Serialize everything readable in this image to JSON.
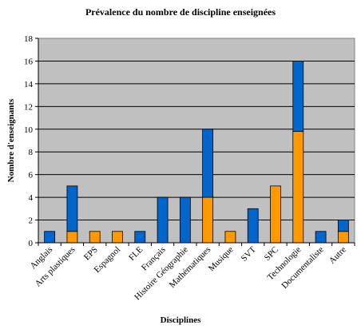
{
  "chart_data": {
    "type": "bar",
    "stacked": true,
    "title": "Prévalence du nombre de discipline enseignées",
    "xlabel": "Disciplines",
    "ylabel": "Nombre d'enseignants",
    "ylim": [
      0,
      18
    ],
    "yticks": [
      "0",
      "2",
      "4",
      "6",
      "8",
      "10",
      "12",
      "14",
      "16",
      "18"
    ],
    "grid": true,
    "legend": "none",
    "categories": [
      "Anglais",
      "Arts plastiques",
      "EPS",
      "Espagnol",
      "FLE",
      "Français",
      "Histoire Géographie",
      "Mathématiques",
      "Musique",
      "SVT",
      "SPC",
      "Technologie",
      "Documentaliste",
      "Autre"
    ],
    "series": [
      {
        "color": "#FF9900",
        "values": [
          0,
          1,
          1,
          1,
          0,
          0,
          0,
          4,
          1,
          0,
          5,
          9.8,
          0,
          1
        ]
      },
      {
        "color": "#0066CC",
        "values": [
          1,
          4,
          0,
          0,
          1,
          4,
          4,
          6,
          0,
          3,
          0,
          6.2,
          1,
          1
        ]
      }
    ],
    "plot_background": "#C0C0C0"
  }
}
